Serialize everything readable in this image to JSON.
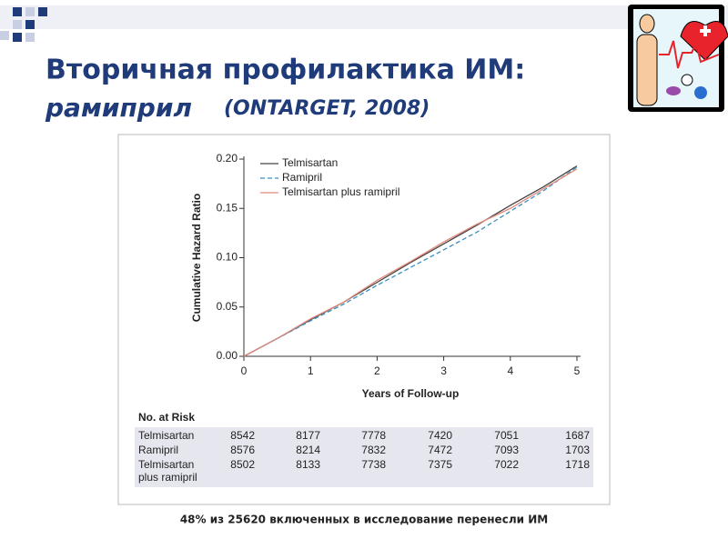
{
  "slide": {
    "title_line1": "Вторичная профилактика ИМ:",
    "title_word": "рамиприл",
    "title_study": "(ONTARGET, 2008)",
    "footer": "48% из 25620 включенных в исследование перенесли ИМ"
  },
  "chart_data": {
    "type": "line",
    "x": [
      0,
      0.5,
      1,
      1.5,
      2,
      2.5,
      3,
      3.5,
      4,
      4.5,
      5
    ],
    "series": [
      {
        "name": "Telmisartan",
        "color": "#444444",
        "dashed": false,
        "values": [
          0,
          0.018,
          0.037,
          0.055,
          0.075,
          0.095,
          0.114,
          0.133,
          0.153,
          0.172,
          0.193
        ]
      },
      {
        "name": "Ramipril",
        "color": "#3a8fc0",
        "dashed": true,
        "values": [
          0,
          0.018,
          0.036,
          0.053,
          0.072,
          0.09,
          0.108,
          0.126,
          0.147,
          0.168,
          0.192
        ]
      },
      {
        "name": "Telmisartan plus ramipril",
        "color": "#e08a7a",
        "dashed": false,
        "values": [
          0,
          0.018,
          0.038,
          0.055,
          0.077,
          0.096,
          0.116,
          0.134,
          0.15,
          0.17,
          0.19
        ]
      }
    ],
    "xlabel": "Years of Follow-up",
    "ylabel": "Cumulative Hazard Ratio",
    "xlim": [
      0,
      5
    ],
    "xticks": [
      0,
      1,
      2,
      3,
      4,
      5
    ],
    "ylim": [
      0,
      0.2
    ],
    "yticks": [
      {
        "value": 0,
        "label": "0.00"
      },
      {
        "value": 0.05,
        "label": "0.05"
      },
      {
        "value": 0.1,
        "label": "0.10"
      },
      {
        "value": 0.15,
        "label": "0.15"
      },
      {
        "value": 0.2,
        "label": "0.20"
      }
    ],
    "legend": "top-left"
  },
  "risk_table": {
    "title": "No. at Risk",
    "rows": [
      {
        "label": [
          "Telmisartan"
        ],
        "values": [
          "8542",
          "8177",
          "7778",
          "7420",
          "7051",
          "1687"
        ]
      },
      {
        "label": [
          "Ramipril"
        ],
        "values": [
          "8576",
          "8214",
          "7832",
          "7472",
          "7093",
          "1703"
        ]
      },
      {
        "label": [
          "Telmisartan",
          "plus ramipril"
        ],
        "values": [
          "8502",
          "8133",
          "7738",
          "7375",
          "7022",
          "1718"
        ]
      }
    ]
  }
}
